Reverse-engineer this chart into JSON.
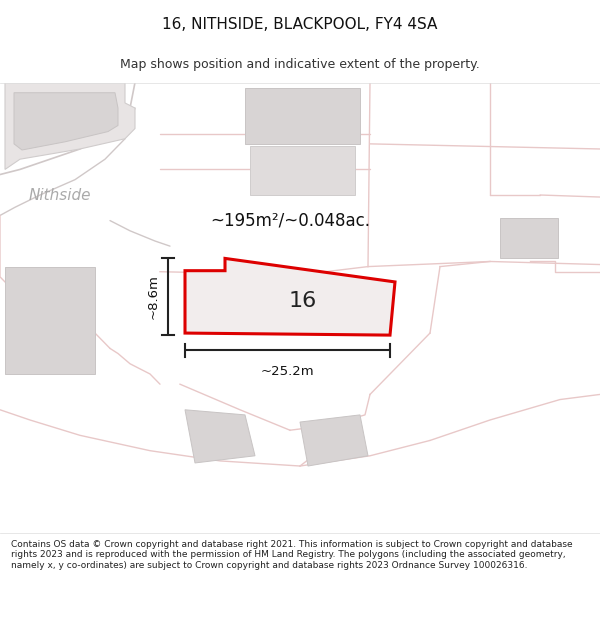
{
  "title": "16, NITHSIDE, BLACKPOOL, FY4 4SA",
  "subtitle": "Map shows position and indicative extent of the property.",
  "footer": "Contains OS data © Crown copyright and database right 2021. This information is subject to Crown copyright and database rights 2023 and is reproduced with the permission of HM Land Registry. The polygons (including the associated geometry, namely x, y co-ordinates) are subject to Crown copyright and database rights 2023 Ordnance Survey 100026316.",
  "map_bg": "#f7f5f5",
  "road_color": "#e8c8c8",
  "road_lw": 1.0,
  "plot_outline_color": "#dd0000",
  "plot_fill_color": "#f2eded",
  "building_fill": "#d8d4d4",
  "building_edge": "#c8c4c4",
  "parcel_edge": "#d0b8b8",
  "dim_color": "#222222",
  "area_text": "~195m²/~0.048ac.",
  "width_label": "~25.2m",
  "height_label": "~8.6m",
  "number_label": "16",
  "street_label": "Nithside",
  "title_fontsize": 11,
  "subtitle_fontsize": 9,
  "footer_fontsize": 6.5
}
